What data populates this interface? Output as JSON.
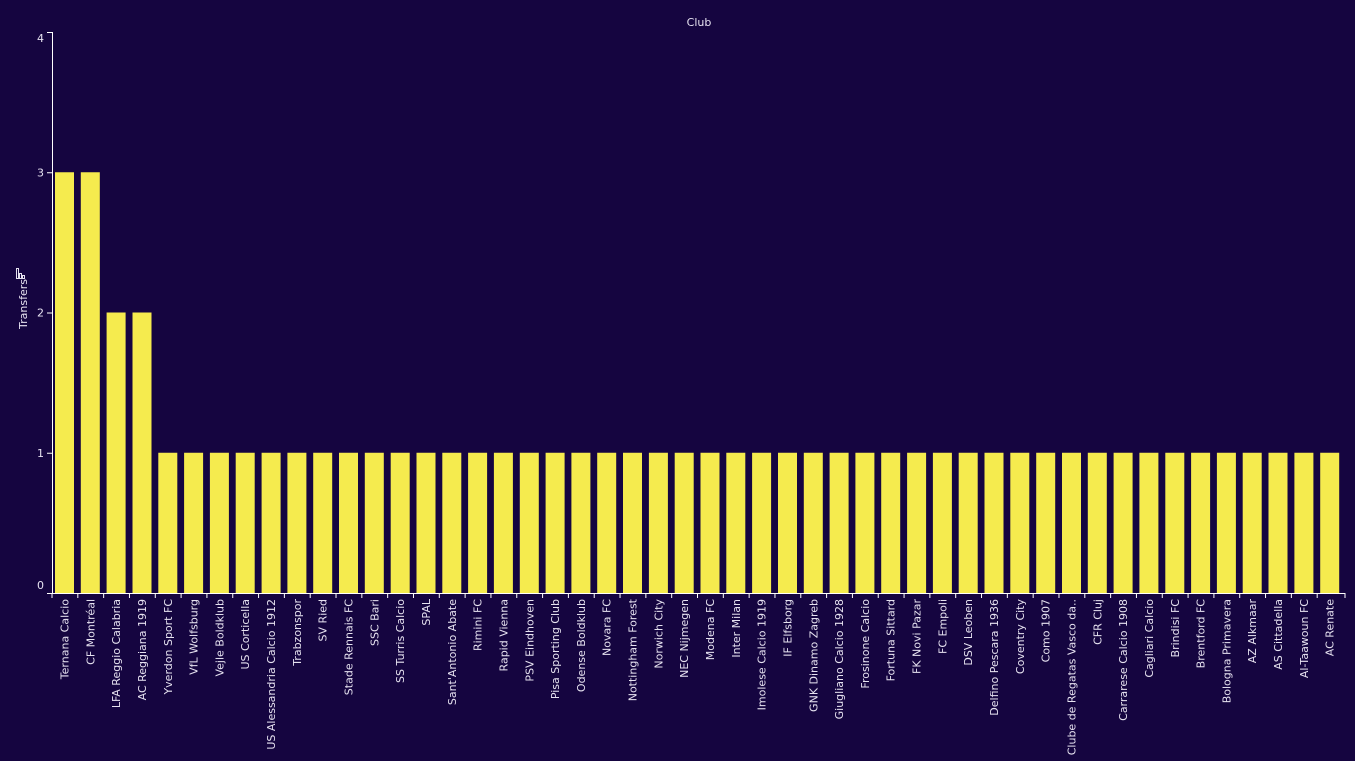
{
  "chart_data": {
    "type": "bar",
    "title": "Club",
    "xlabel": "",
    "ylabel": "Transfers",
    "ylim": [
      0,
      4
    ],
    "yticks": [
      0,
      1,
      2,
      3,
      4
    ],
    "grid": false,
    "colors": {
      "background": "#150540",
      "bar": "#f5eb4e",
      "axis": "#ffffff",
      "text": "#e6e2f0"
    },
    "categories": [
      "Ternana Calcio",
      "CF Montréal",
      "LFA Reggio Calabria",
      "AC Reggiana 1919",
      "Yverdon Sport FC",
      "VfL Wolfsburg",
      "Vejle Boldklub",
      "US Corticella",
      "US Alessandria Calcio 1912",
      "Trabzonspor",
      "SV Ried",
      "Stade Rennais FC",
      "SSC Bari",
      "SS Turris Calcio",
      "SPAL",
      "Sant'Antonio Abate",
      "Rimini FC",
      "Rapid Vienna",
      "PSV Eindhoven",
      "Pisa Sporting Club",
      "Odense Boldklub",
      "Novara FC",
      "Nottingham Forest",
      "Norwich City",
      "NEC Nijmegen",
      "Modena FC",
      "Inter Milan",
      "Imolese Calcio 1919",
      "IF Elfsborg",
      "GNK Dinamo Zagreb",
      "Giugliano Calcio 1928",
      "Frosinone Calcio",
      "Fortuna Sittard",
      "FK Novi Pazar",
      "FC Empoli",
      "DSV Leoben",
      "Delfino Pescara 1936",
      "Coventry City",
      "Como 1907",
      "Clube de Regatas Vasco da..",
      "CFR Cluj",
      "Carrarese Calcio 1908",
      "Cagliari Calcio",
      "Brindisi FC",
      "Brentford FC",
      "Bologna Primavera",
      "AZ Alkmaar",
      "AS Cittadella",
      "Al-Taawoun FC",
      "AC Renate"
    ],
    "values": [
      3,
      3,
      2,
      2,
      1,
      1,
      1,
      1,
      1,
      1,
      1,
      1,
      1,
      1,
      1,
      1,
      1,
      1,
      1,
      1,
      1,
      1,
      1,
      1,
      1,
      1,
      1,
      1,
      1,
      1,
      1,
      1,
      1,
      1,
      1,
      1,
      1,
      1,
      1,
      1,
      1,
      1,
      1,
      1,
      1,
      1,
      1,
      1,
      1,
      1
    ]
  }
}
